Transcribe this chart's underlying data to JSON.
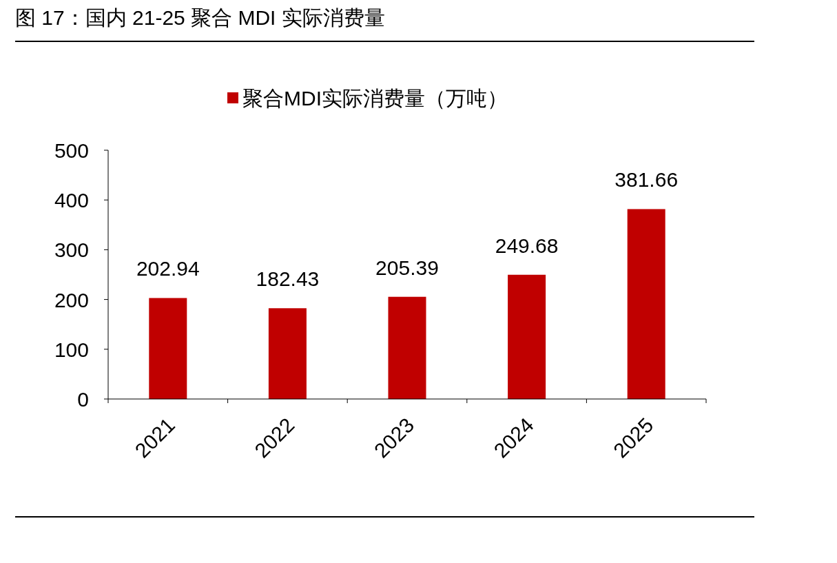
{
  "chart_data": {
    "type": "bar",
    "title": "图 17：国内 21-25 聚合 MDI 实际消费量",
    "categories": [
      "2021",
      "2022",
      "2023",
      "2024",
      "2025"
    ],
    "series": [
      {
        "name": "聚合MDI实际消费量（万吨）",
        "color": "#c00000",
        "values": [
          202.94,
          182.43,
          205.39,
          249.68,
          381.66
        ]
      }
    ],
    "ylim": [
      0,
      500
    ],
    "yticks": [
      0,
      100,
      200,
      300,
      400,
      500
    ],
    "data_labels": true,
    "legend": "top",
    "grid": false
  }
}
